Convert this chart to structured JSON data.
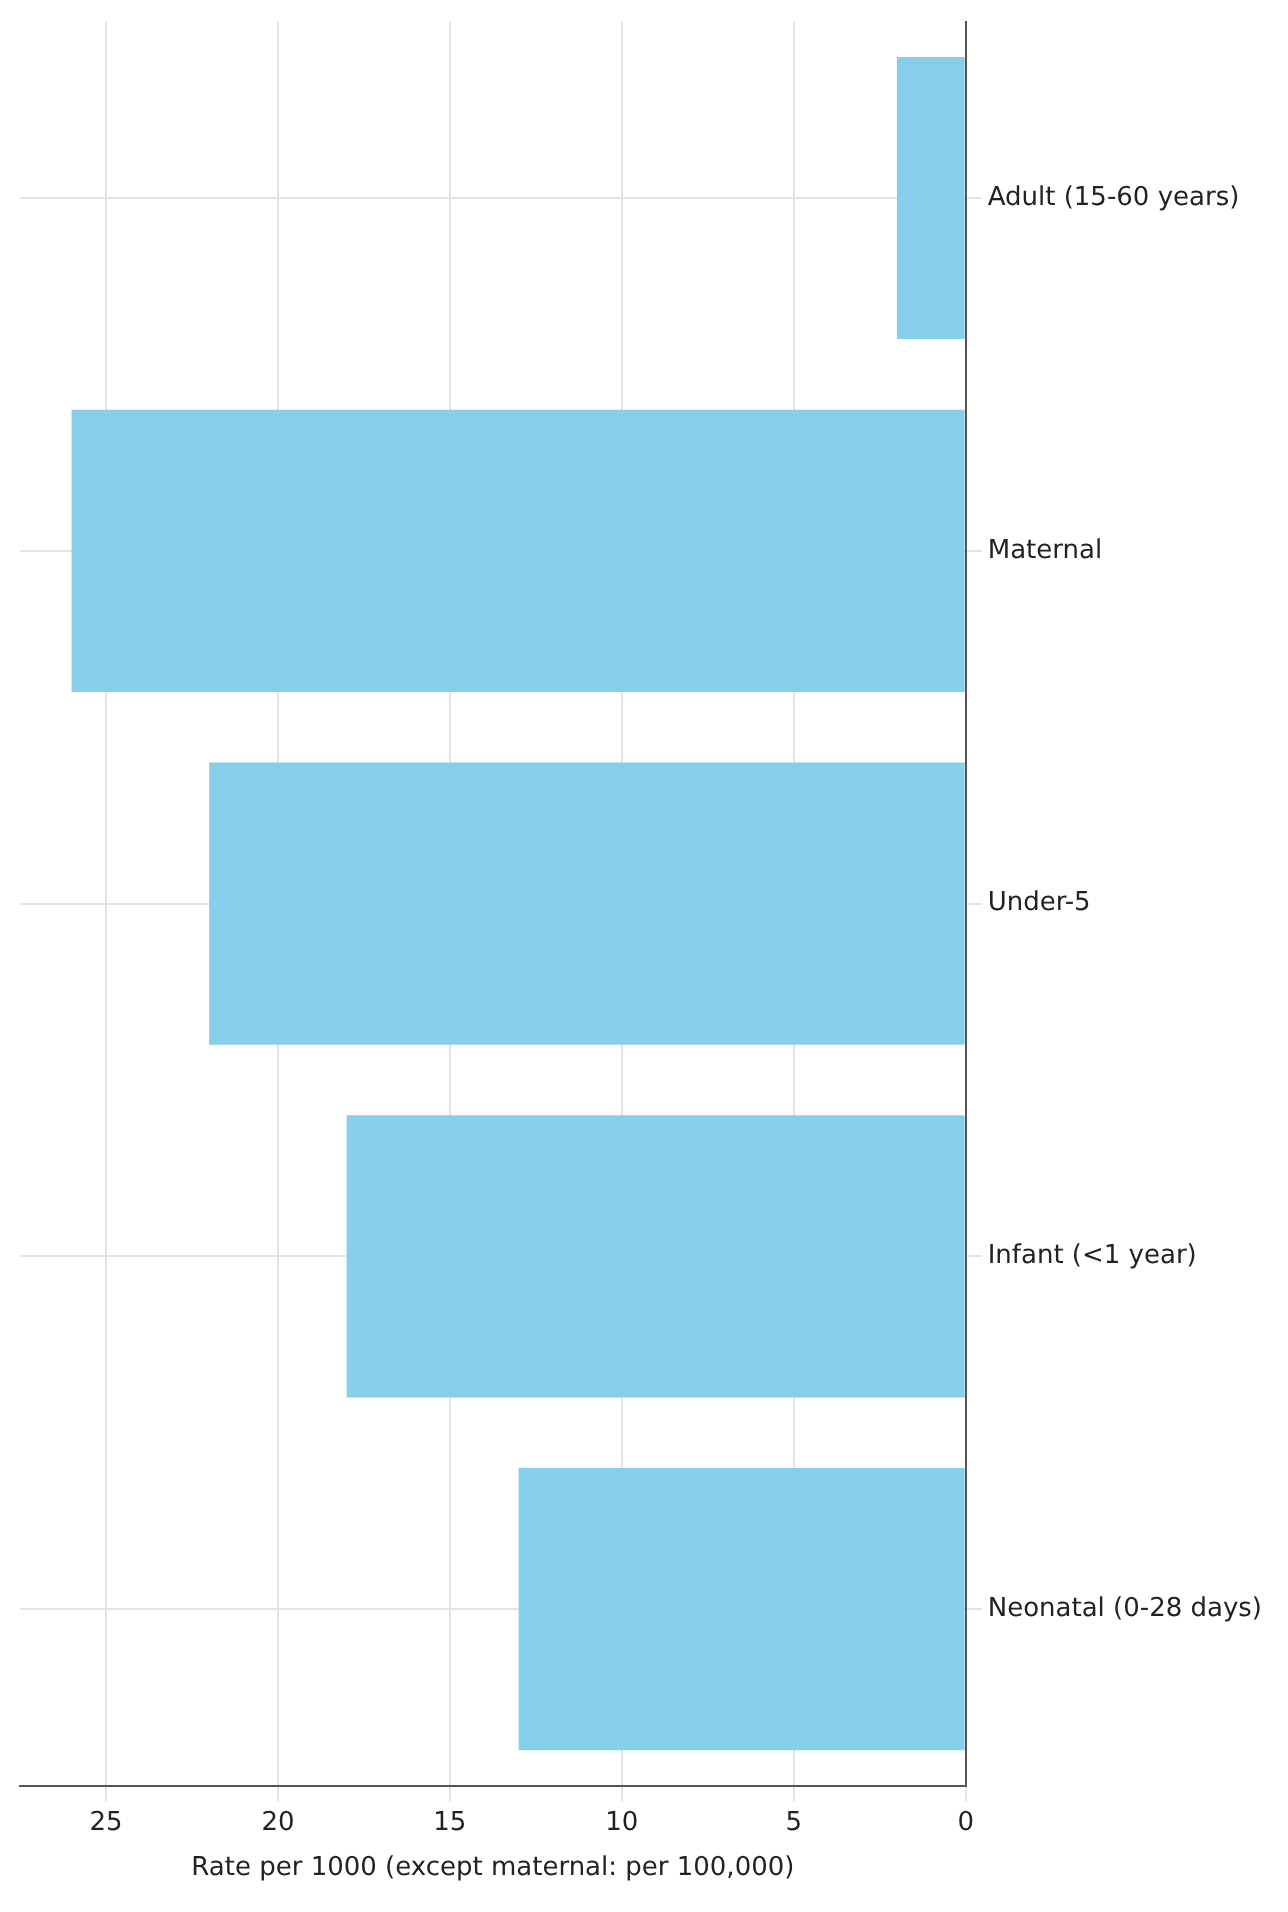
{
  "chart_data": {
    "type": "bar",
    "orientation": "horizontal",
    "xlabel": "Rate per 1000 (except maternal: per 100,000)",
    "categories": [
      "Adult (15-60 years)",
      "Maternal",
      "Under-5",
      "Infant (<1 year)",
      "Neonatal (0-28 days)"
    ],
    "values": [
      2,
      26,
      22,
      18,
      13
    ],
    "color": "#87ceeb",
    "xlim": [
      27.5,
      0
    ],
    "xticks": [
      25,
      20,
      15,
      10,
      5,
      0
    ],
    "grid": true,
    "legend": false
  }
}
